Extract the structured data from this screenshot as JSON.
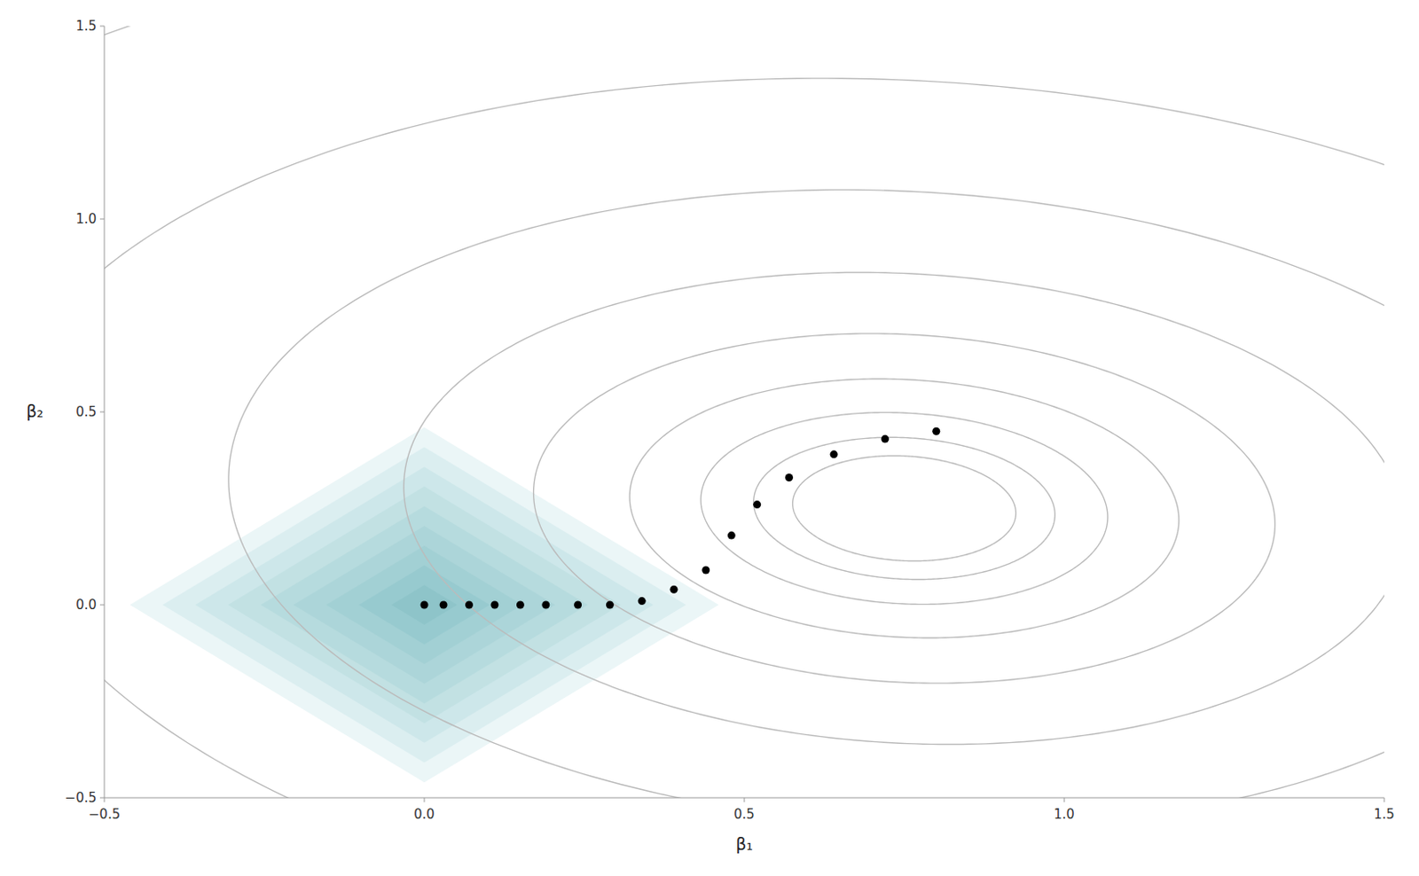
{
  "chart_data": {
    "type": "scatter",
    "xlabel": "β₁",
    "ylabel": "β₂",
    "x": [
      0.0,
      0.03,
      0.07,
      0.11,
      0.15,
      0.19,
      0.24,
      0.29,
      0.34,
      0.39,
      0.44,
      0.48,
      0.52,
      0.57,
      0.64,
      0.72,
      0.8
    ],
    "values": [
      0.0,
      0.0,
      0.0,
      0.0,
      0.0,
      0.0,
      0.0,
      0.0,
      0.01,
      0.04,
      0.09,
      0.18,
      0.26,
      0.33,
      0.39,
      0.43,
      0.45
    ],
    "color": "#000000",
    "xlim": [
      -0.5,
      1.5
    ],
    "ylim": [
      -0.5,
      1.5
    ],
    "xticks": [
      {
        "value": -0.5,
        "label": "−0.5"
      },
      {
        "value": 0.0,
        "label": "0.0"
      },
      0.5,
      {
        "value": 1.0,
        "label": "1.0"
      },
      1.5
    ],
    "yticks": [
      {
        "value": -0.5,
        "label": "−0.5"
      },
      {
        "value": 0.0,
        "label": "0.0"
      },
      0.5,
      {
        "value": 1.0,
        "label": "1.0"
      },
      1.5
    ],
    "grid": false,
    "ellipses": {
      "center": [
        0.75,
        0.25
      ],
      "a": 0.13,
      "b": 0.1,
      "angle": -10,
      "levels": 14,
      "scale_factor": 1.35,
      "color": "#bbbbbb"
    },
    "diamonds": {
      "center": [
        0.0,
        0.0
      ],
      "levels": 9,
      "max_radius": 0.46
    }
  }
}
